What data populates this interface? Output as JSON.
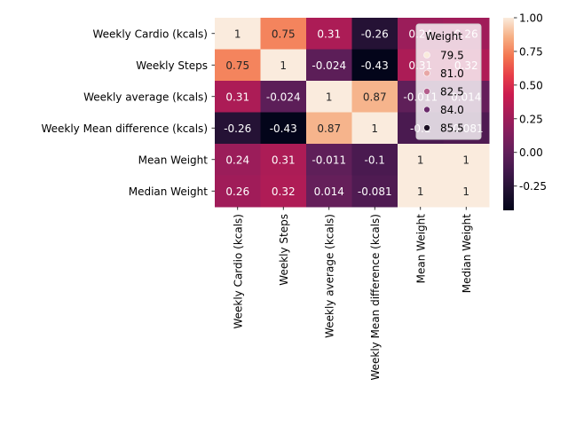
{
  "chart_data": {
    "type": "heatmap",
    "title": "",
    "xlabel": "",
    "ylabel": "",
    "rows": [
      "Weekly Cardio (kcals)",
      "Weekly Steps",
      "Weekly average (kcals)",
      "Weekly Mean difference (kcals)",
      "Mean Weight",
      "Median Weight"
    ],
    "columns": [
      "Weekly Cardio (kcals)",
      "Weekly Steps",
      "Weekly average (kcals)",
      "Weekly Mean difference (kcals)",
      "Mean Weight",
      "Median Weight"
    ],
    "values": [
      [
        1,
        0.75,
        0.31,
        -0.26,
        0.24,
        0.26
      ],
      [
        0.75,
        1,
        -0.024,
        -0.43,
        0.31,
        0.32
      ],
      [
        0.31,
        -0.024,
        1,
        0.87,
        -0.011,
        0.014
      ],
      [
        -0.26,
        -0.43,
        0.87,
        1,
        -0.1,
        -0.081
      ],
      [
        0.24,
        0.31,
        -0.011,
        -0.1,
        1,
        1
      ],
      [
        0.26,
        0.32,
        0.014,
        -0.081,
        1,
        1
      ]
    ],
    "annotations": [
      [
        "1",
        "0.75",
        "0.31",
        "-0.26",
        "0.24",
        "0.26"
      ],
      [
        "0.75",
        "1",
        "-0.024",
        "-0.43",
        "0.31",
        "0.32"
      ],
      [
        "0.31",
        "-0.024",
        "1",
        "0.87",
        "-0.011",
        "0.014"
      ],
      [
        "-0.26",
        "-0.43",
        "0.87",
        "1",
        "-0.1",
        "-0.081"
      ],
      [
        "0.24",
        "0.31",
        "-0.011",
        "-0.1",
        "1",
        "1"
      ],
      [
        "0.26",
        "0.32",
        "0.014",
        "-0.081",
        "1",
        "1"
      ]
    ],
    "colorbar": {
      "vmin": -0.43,
      "vmax": 1.0,
      "ticks": [
        "-0.25",
        "0.00",
        "0.25",
        "0.50",
        "0.75",
        "1.00"
      ],
      "tick_values": [
        -0.25,
        0.0,
        0.25,
        0.5,
        0.75,
        1.0
      ],
      "colormap": "rocket"
    },
    "legend": {
      "title": "Weight",
      "placement": "top-right",
      "entries": [
        "79.5",
        "81.0",
        "82.5",
        "84.0",
        "85.5"
      ],
      "colors": [
        "#faebdd",
        "#e8a7a6",
        "#b35c8c",
        "#6a2a6b",
        "#1c1024"
      ]
    }
  }
}
